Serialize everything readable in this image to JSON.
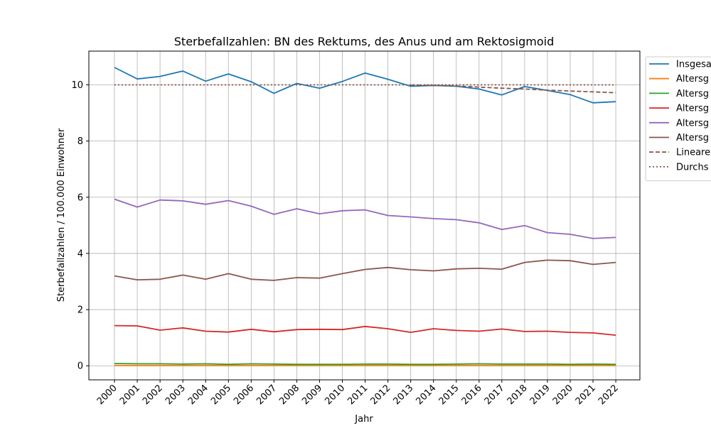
{
  "chart_data": {
    "type": "line",
    "title": "Sterbefallzahlen: BN des Rektums, des Anus und am Rektosigmoid",
    "xlabel": "Jahr",
    "ylabel": "Sterbefallzahlen / 100.000 Einwohner",
    "ylim": [
      -0.5,
      11.2
    ],
    "yticks": [
      0,
      2,
      4,
      6,
      8,
      10
    ],
    "grid": true,
    "legend_position": "right, partially cut off",
    "x": [
      "2000",
      "2001",
      "2002",
      "2003",
      "2004",
      "2005",
      "2006",
      "2007",
      "2008",
      "2009",
      "2010",
      "2011",
      "2012",
      "2013",
      "2014",
      "2015",
      "2016",
      "2017",
      "2018",
      "2019",
      "2020",
      "2021",
      "2022"
    ],
    "series": [
      {
        "name": "Insgesa",
        "color": "#1f77b4",
        "style": "solid",
        "values": [
          10.62,
          10.21,
          10.3,
          10.49,
          10.13,
          10.39,
          10.11,
          9.7,
          10.05,
          9.88,
          10.12,
          10.42,
          10.2,
          9.95,
          9.98,
          9.95,
          9.85,
          9.64,
          9.94,
          9.8,
          9.65,
          9.36,
          9.4
        ]
      },
      {
        "name": "Altersg",
        "color": "#ff7f0e",
        "style": "solid",
        "values": [
          0.01,
          0.01,
          0.01,
          0.01,
          0.01,
          0.01,
          0.01,
          0.01,
          0.01,
          0.01,
          0.01,
          0.01,
          0.01,
          0.01,
          0.01,
          0.01,
          0.01,
          0.01,
          0.01,
          0.01,
          0.01,
          0.01,
          0.01
        ]
      },
      {
        "name": "Altersg",
        "color": "#2ca02c",
        "style": "solid",
        "values": [
          0.08,
          0.07,
          0.07,
          0.06,
          0.07,
          0.05,
          0.07,
          0.06,
          0.05,
          0.05,
          0.05,
          0.06,
          0.06,
          0.05,
          0.05,
          0.06,
          0.07,
          0.06,
          0.06,
          0.06,
          0.05,
          0.06,
          0.05
        ]
      },
      {
        "name": "Altersg",
        "color": "#d62728",
        "style": "solid",
        "values": [
          1.43,
          1.42,
          1.27,
          1.35,
          1.23,
          1.2,
          1.3,
          1.21,
          1.29,
          1.3,
          1.29,
          1.4,
          1.32,
          1.19,
          1.32,
          1.26,
          1.23,
          1.31,
          1.22,
          1.23,
          1.19,
          1.17,
          1.09
        ]
      },
      {
        "name": "Altersg",
        "color": "#9467bd",
        "style": "solid",
        "values": [
          5.93,
          5.65,
          5.9,
          5.87,
          5.75,
          5.88,
          5.68,
          5.39,
          5.59,
          5.41,
          5.52,
          5.55,
          5.35,
          5.3,
          5.24,
          5.2,
          5.09,
          4.85,
          4.99,
          4.74,
          4.68,
          4.53,
          4.57
        ]
      },
      {
        "name": "Altersg",
        "color": "#8c564b",
        "style": "solid",
        "values": [
          3.2,
          3.06,
          3.08,
          3.23,
          3.08,
          3.28,
          3.08,
          3.04,
          3.14,
          3.12,
          3.28,
          3.43,
          3.5,
          3.42,
          3.38,
          3.45,
          3.47,
          3.44,
          3.68,
          3.76,
          3.74,
          3.61,
          3.68
        ]
      },
      {
        "name": "Lineare",
        "color": "#8c564b",
        "style": "dashed",
        "values": [
          null,
          null,
          null,
          null,
          null,
          null,
          null,
          null,
          null,
          null,
          null,
          null,
          null,
          9.99,
          9.98,
          9.96,
          9.92,
          9.88,
          9.85,
          9.81,
          9.78,
          9.75,
          9.72
        ]
      },
      {
        "name": "Durchs",
        "color": "#8c564b",
        "style": "dotted",
        "values": [
          10.0,
          10.0,
          10.0,
          10.0,
          10.0,
          10.0,
          10.0,
          10.0,
          10.0,
          10.0,
          10.0,
          10.0,
          10.0,
          10.0,
          10.0,
          10.0,
          10.0,
          10.0,
          10.0,
          10.0,
          10.0,
          10.0,
          10.0
        ]
      }
    ]
  }
}
